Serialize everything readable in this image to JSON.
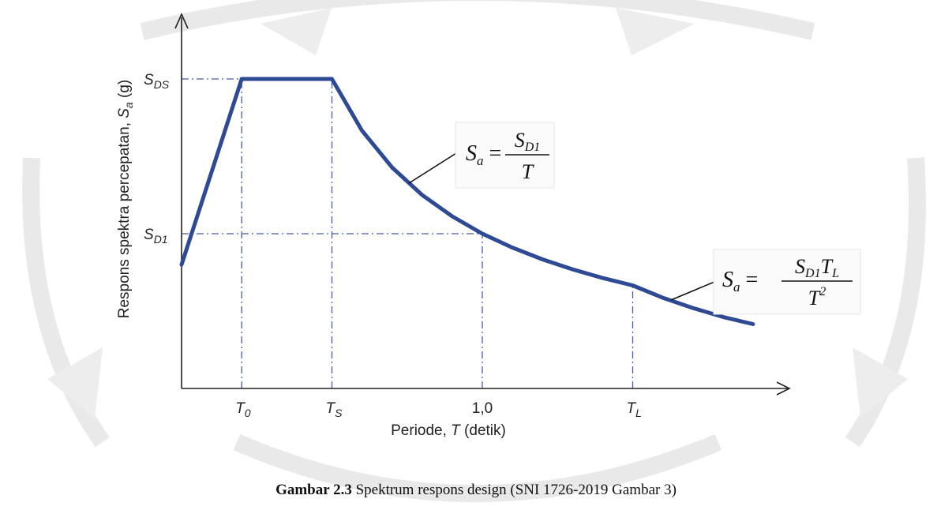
{
  "caption": {
    "prefix": "Gambar 2.3",
    "text": " Spektrum respons design (SNI 1726-2019 Gambar 3)"
  },
  "chart_data": {
    "type": "line",
    "title": "",
    "xlabel": "Periode, T (detik)",
    "ylabel": "Respons spektra percepatan, Sa (g)",
    "x_ticks": [
      {
        "key": "T0",
        "main": "T",
        "sub": "0",
        "value": 0.2
      },
      {
        "key": "TS",
        "main": "T",
        "sub": "S",
        "value": 0.5
      },
      {
        "key": "one",
        "main": "1,0",
        "sub": "",
        "value": 1.0
      },
      {
        "key": "TL",
        "main": "T",
        "sub": "L",
        "value": 1.5
      }
    ],
    "y_ticks": [
      {
        "key": "SDS",
        "main": "S",
        "sub": "DS",
        "value": 1.0
      },
      {
        "key": "SD1",
        "main": "S",
        "sub": "D1",
        "value": 0.5
      }
    ],
    "xlim": [
      0,
      2.0
    ],
    "ylim": [
      0,
      1.0
    ],
    "series": [
      {
        "x": [
          0.0,
          0.2,
          0.5,
          0.6,
          0.7,
          0.8,
          0.9,
          1.0,
          1.1,
          1.2,
          1.3,
          1.4,
          1.5,
          1.6,
          1.7,
          1.8,
          1.9
        ],
        "y": [
          0.4,
          1.0,
          1.0,
          0.833,
          0.714,
          0.625,
          0.556,
          0.5,
          0.455,
          0.417,
          0.385,
          0.357,
          0.333,
          0.293,
          0.26,
          0.231,
          0.208
        ]
      }
    ],
    "annotations": [
      {
        "key": "f1",
        "lhs": "S",
        "lhs_sub": "a",
        "num": "S",
        "num_sub": "D1",
        "num_extra": "",
        "num_extra_sub": "",
        "den": "T",
        "den_sup": ""
      },
      {
        "key": "f2",
        "lhs": "S",
        "lhs_sub": "a",
        "num": "S",
        "num_sub": "D1",
        "num_extra": "T",
        "num_extra_sub": "L",
        "den": "T",
        "den_sup": "2"
      }
    ]
  }
}
